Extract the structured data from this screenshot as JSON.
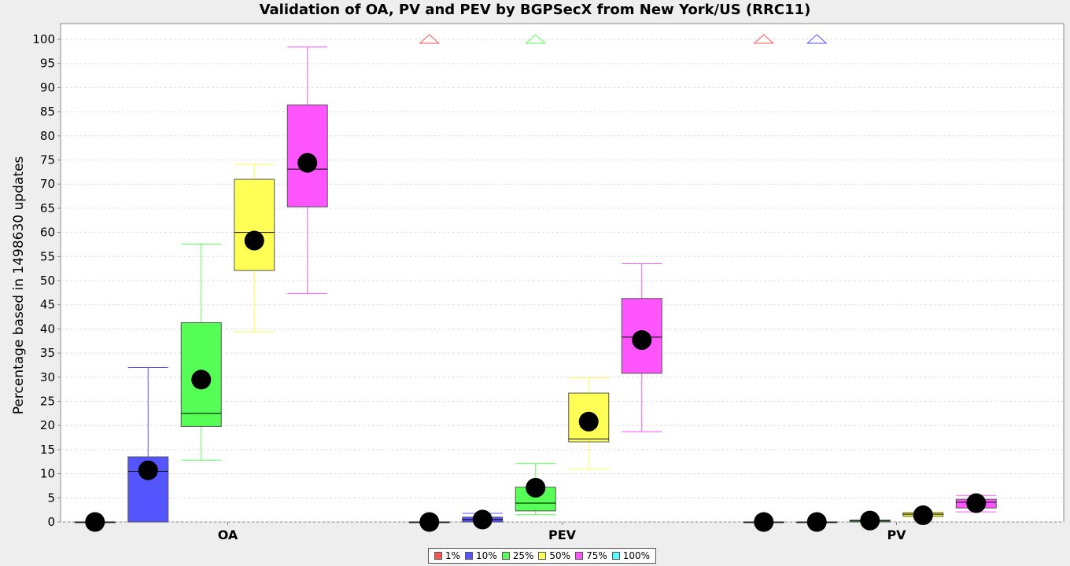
{
  "chart_data": {
    "type": "boxplot",
    "title": "Validation of OA, PV and PEV by BGPSecX from New York/US (RRC11)",
    "ylabel": "Percentage based in 1498630 updates",
    "xlabel": "",
    "ylim": [
      0,
      100
    ],
    "ytick_step": 5,
    "grid": true,
    "legend_position": "bottom",
    "categories": [
      "OA",
      "PEV",
      "PV"
    ],
    "series": [
      {
        "name": "1%",
        "color": "#ff5555",
        "boxes": [
          {
            "min": 0,
            "q1": 0,
            "median": 0,
            "q3": 0,
            "max": 0,
            "mean": 0,
            "outlier_max": false
          },
          {
            "min": 0,
            "q1": 0,
            "median": 0,
            "q3": 0,
            "max": 0,
            "mean": 0,
            "outlier_max": true
          },
          {
            "min": 0,
            "q1": 0,
            "median": 0,
            "q3": 0,
            "max": 0,
            "mean": 0,
            "outlier_max": true
          }
        ]
      },
      {
        "name": "10%",
        "color": "#5555ff",
        "boxes": [
          {
            "min": 0,
            "q1": 0,
            "median": 10.5,
            "q3": 13.5,
            "max": 32,
            "mean": 10.7,
            "outlier_max": false
          },
          {
            "min": 0,
            "q1": 0,
            "median": 0.5,
            "q3": 1,
            "max": 1.8,
            "mean": 0.5,
            "outlier_max": false
          },
          {
            "min": 0,
            "q1": 0,
            "median": 0,
            "q3": 0,
            "max": 0,
            "mean": 0,
            "outlier_max": true
          }
        ]
      },
      {
        "name": "25%",
        "color": "#55ff55",
        "boxes": [
          {
            "min": 12.8,
            "q1": 19.8,
            "median": 22.5,
            "q3": 41.3,
            "max": 57.6,
            "mean": 29.5,
            "outlier_max": false
          },
          {
            "min": 1.5,
            "q1": 2.3,
            "median": 3.9,
            "q3": 7.2,
            "max": 12.1,
            "mean": 7.1,
            "outlier_max": true
          },
          {
            "min": 0,
            "q1": 0,
            "median": 0.2,
            "q3": 0.4,
            "max": 0.4,
            "mean": 0.3,
            "outlier_max": false
          }
        ]
      },
      {
        "name": "50%",
        "color": "#ffff55",
        "boxes": [
          {
            "min": 39.4,
            "q1": 52.1,
            "median": 60,
            "q3": 71,
            "max": 74.1,
            "mean": 58.3,
            "outlier_max": false
          },
          {
            "min": 10.9,
            "q1": 16.6,
            "median": 17.2,
            "q3": 26.7,
            "max": 29.9,
            "mean": 20.8,
            "outlier_max": false
          },
          {
            "min": 1,
            "q1": 1.2,
            "median": 1.6,
            "q3": 1.9,
            "max": 2,
            "mean": 1.4,
            "outlier_max": false
          }
        ]
      },
      {
        "name": "75%",
        "color": "#ff55ff",
        "boxes": [
          {
            "min": 47.3,
            "q1": 65.3,
            "median": 73.1,
            "q3": 86.4,
            "max": 98.4,
            "mean": 74.4,
            "outlier_max": false
          },
          {
            "min": 18.7,
            "q1": 30.8,
            "median": 38.3,
            "q3": 46.3,
            "max": 53.5,
            "mean": 37.7,
            "outlier_max": false
          },
          {
            "min": 2.1,
            "q1": 2.9,
            "median": 4.1,
            "q3": 4.7,
            "max": 5.5,
            "mean": 3.9,
            "outlier_max": false
          }
        ]
      },
      {
        "name": "100%",
        "color": "#55ffff",
        "boxes": [
          null,
          null,
          null
        ]
      }
    ]
  }
}
